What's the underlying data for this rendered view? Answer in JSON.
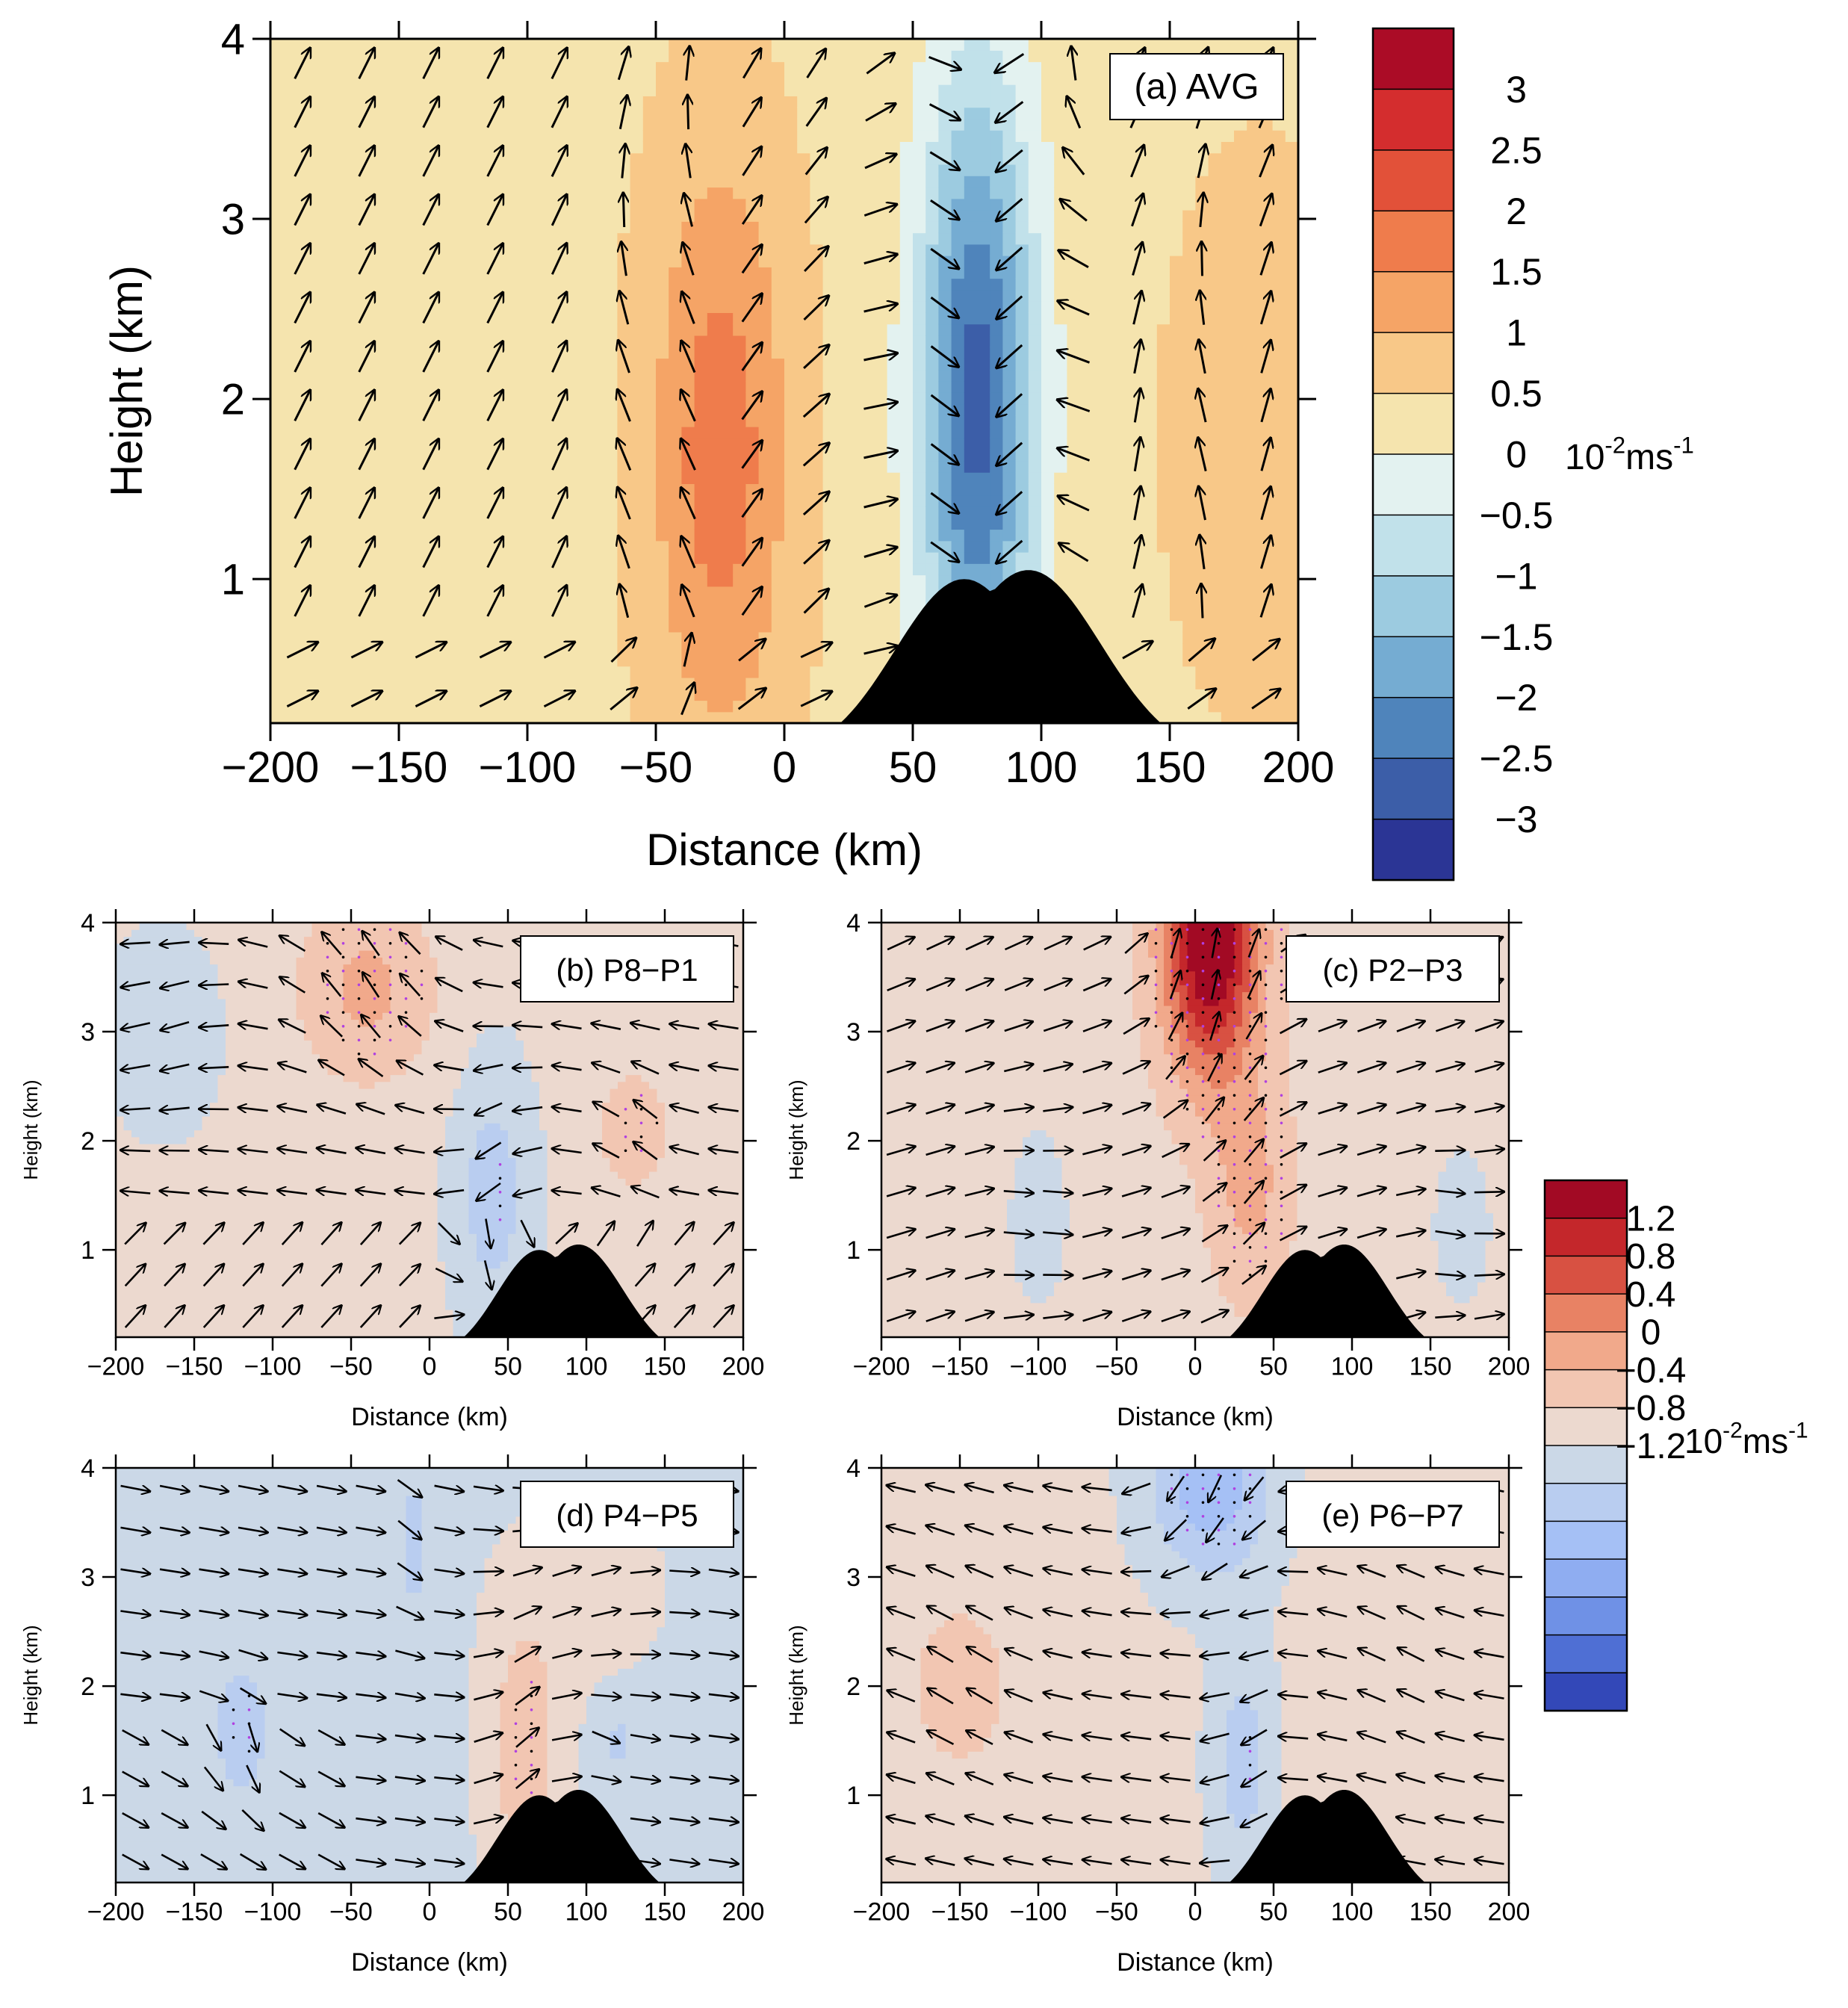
{
  "colors": {
    "pos_scale_a": [
      "#f5e4ae",
      "#f8c888",
      "#f5a466",
      "#ef7c4c",
      "#e25139",
      "#d42d2e",
      "#ab0c26"
    ],
    "neg_scale_a": [
      "#e3f2f0",
      "#c1e1ea",
      "#9ccbe0",
      "#75acd2",
      "#4f84bb",
      "#3c5ea8",
      "#2b3595"
    ],
    "pos_scale_d": [
      "#ecd9cf",
      "#f2c6b2",
      "#f1a98b",
      "#e88264",
      "#d85142",
      "#c4272b",
      "#a20a24"
    ],
    "neg_scale_d": [
      "#cbd8e7",
      "#b9cdf0",
      "#a5c0f5",
      "#8fadf1",
      "#6f91e6",
      "#4f6fd4",
      "#3348b8"
    ],
    "terrain": "#000000",
    "vector": "#000000",
    "stipple_black": "#000000",
    "stipple_purple": "#b040e0"
  },
  "chart_data": [
    {
      "id": "a",
      "type": "contour",
      "title": "(a) AVG",
      "xlabel": "Distance (km)",
      "ylabel": "Height (km)",
      "xlim": [
        -200,
        200
      ],
      "ylim": [
        0.2,
        4
      ],
      "xticks": [
        "−200",
        "−150",
        "−100",
        "−50",
        "0",
        "50",
        "100",
        "150",
        "200"
      ],
      "xtick_values": [
        -200,
        -150,
        -100,
        -50,
        0,
        50,
        100,
        150,
        200
      ],
      "yticks": [
        "1",
        "2",
        "3",
        "4"
      ],
      "ytick_values": [
        1,
        2,
        3,
        4
      ],
      "units": "10⁻²ms⁻¹",
      "features": [
        {
          "x": -25,
          "z": 1.7,
          "amp": 1.4,
          "sx": 26,
          "sz": 1.6,
          "note": "updraft core"
        },
        {
          "x": 75,
          "z": 2.0,
          "amp": -3.1,
          "sx": 23,
          "sz": 1.8,
          "note": "downdraft core"
        },
        {
          "x": 185,
          "z": 1.8,
          "amp": 0.6,
          "sx": 30,
          "sz": 1.3
        }
      ],
      "background": 0.4
    },
    {
      "id": "b",
      "type": "contour",
      "title": "(b) P8−P1",
      "xlabel": "Distance (km)",
      "ylabel": "Height (km)",
      "xlim": [
        -200,
        200
      ],
      "ylim": [
        0.2,
        4
      ],
      "xticks": [
        "−200",
        "−150",
        "−100",
        "−50",
        "0",
        "50",
        "100",
        "150",
        "200"
      ],
      "xtick_values": [
        -200,
        -150,
        -100,
        -50,
        0,
        50,
        100,
        150,
        200
      ],
      "yticks": [
        "1",
        "2",
        "3",
        "4"
      ],
      "ytick_values": [
        1,
        2,
        3,
        4
      ],
      "features": [
        {
          "x": -40,
          "z": 3.4,
          "amp": 0.4,
          "sx": 45,
          "sz": 0.9
        },
        {
          "x": 40,
          "z": 1.5,
          "amp": -0.35,
          "sx": 25,
          "sz": 1.2
        },
        {
          "x": 130,
          "z": 2.1,
          "amp": 0.3,
          "sx": 25,
          "sz": 0.6
        },
        {
          "x": -170,
          "z": 3.0,
          "amp": -0.15,
          "sx": 40,
          "sz": 1.0
        }
      ],
      "background": 0.05
    },
    {
      "id": "c",
      "type": "contour",
      "title": "(c) P2−P3",
      "xlabel": "Distance (km)",
      "ylabel": "Height (km)",
      "xlim": [
        -200,
        200
      ],
      "ylim": [
        0.2,
        4
      ],
      "xticks": [
        "−200",
        "−150",
        "−100",
        "−50",
        "0",
        "50",
        "100",
        "150",
        "200"
      ],
      "xtick_values": [
        -200,
        -150,
        -100,
        -50,
        0,
        50,
        100,
        150,
        200
      ],
      "yticks": [
        "1",
        "2",
        "3",
        "4"
      ],
      "ytick_values": [
        1,
        2,
        3,
        4
      ],
      "features": [
        {
          "x": 10,
          "z": 3.8,
          "amp": 1.35,
          "sx": 30,
          "sz": 1.2
        },
        {
          "x": 35,
          "z": 1.6,
          "amp": 0.35,
          "sx": 25,
          "sz": 1.0
        },
        {
          "x": -100,
          "z": 1.3,
          "amp": -0.2,
          "sx": 25,
          "sz": 1.1
        },
        {
          "x": 170,
          "z": 1.2,
          "amp": -0.2,
          "sx": 25,
          "sz": 1.0
        }
      ],
      "background": 0.12
    },
    {
      "id": "d",
      "type": "contour",
      "title": "(d) P4−P5",
      "xlabel": "Distance (km)",
      "ylabel": "Height (km)",
      "xlim": [
        -200,
        200
      ],
      "ylim": [
        0.2,
        4
      ],
      "xticks": [
        "−200",
        "−150",
        "−100",
        "−50",
        "0",
        "50",
        "100",
        "150",
        "200"
      ],
      "xtick_values": [
        -200,
        -150,
        -100,
        -50,
        0,
        50,
        100,
        150,
        200
      ],
      "yticks": [
        "1",
        "2",
        "3",
        "4"
      ],
      "ytick_values": [
        1,
        2,
        3,
        4
      ],
      "features": [
        {
          "x": 60,
          "z": 1.4,
          "amp": 0.4,
          "sx": 25,
          "sz": 1.2
        },
        {
          "x": -120,
          "z": 1.6,
          "amp": -0.3,
          "sx": 18,
          "sz": 0.6
        },
        {
          "x": -10,
          "z": 3.3,
          "amp": -0.2,
          "sx": 12,
          "sz": 0.9
        },
        {
          "x": 120,
          "z": 1.5,
          "amp": -0.2,
          "sx": 12,
          "sz": 0.3
        },
        {
          "x": 100,
          "z": 2.9,
          "amp": 0.15,
          "sx": 50,
          "sz": 0.8
        }
      ],
      "background": -0.05
    },
    {
      "id": "e",
      "type": "contour",
      "title": "(e) P6−P7",
      "xlabel": "Distance (km)",
      "ylabel": "Height (km)",
      "xlim": [
        -200,
        200
      ],
      "ylim": [
        0.2,
        4
      ],
      "xticks": [
        "−200",
        "−150",
        "−100",
        "−50",
        "0",
        "50",
        "100",
        "150",
        "200"
      ],
      "xtick_values": [
        -200,
        -150,
        -100,
        -50,
        0,
        50,
        100,
        150,
        200
      ],
      "yticks": [
        "1",
        "2",
        "3",
        "4"
      ],
      "ytick_values": [
        1,
        2,
        3,
        4
      ],
      "features": [
        {
          "x": 10,
          "z": 3.9,
          "amp": -0.6,
          "sx": 40,
          "sz": 0.9
        },
        {
          "x": 30,
          "z": 1.3,
          "amp": -0.35,
          "sx": 20,
          "sz": 1.1
        },
        {
          "x": -150,
          "z": 2.0,
          "amp": 0.2,
          "sx": 50,
          "sz": 1.2
        },
        {
          "x": 130,
          "z": 2.2,
          "amp": 0.15,
          "sx": 40,
          "sz": 1.2
        }
      ],
      "background": 0.05
    }
  ],
  "colorbars": [
    {
      "id": "cb_a",
      "labels": [
        "3",
        "2.5",
        "2",
        "1.5",
        "1",
        "0.5",
        "0",
        "−0.5",
        "−1",
        "−1.5",
        "−2",
        "−2.5",
        "−3"
      ],
      "values": [
        3,
        2.5,
        2,
        1.5,
        1,
        0.5,
        0,
        -0.5,
        -1,
        -1.5,
        -2,
        -2.5,
        -3
      ],
      "units_base": "10",
      "units_exp1": "-2",
      "units_mid": "ms",
      "units_exp2": "-1"
    },
    {
      "id": "cb_d",
      "labels": [
        "1.2",
        "0.8",
        "0.4",
        "0",
        "−0.4",
        "−0.8",
        "−1.2"
      ],
      "values": [
        1.2,
        0.8,
        0.4,
        0,
        -0.4,
        -0.8,
        -1.2
      ],
      "units_base": "10",
      "units_exp1": "-2",
      "units_mid": "ms",
      "units_exp2": "-1"
    }
  ]
}
